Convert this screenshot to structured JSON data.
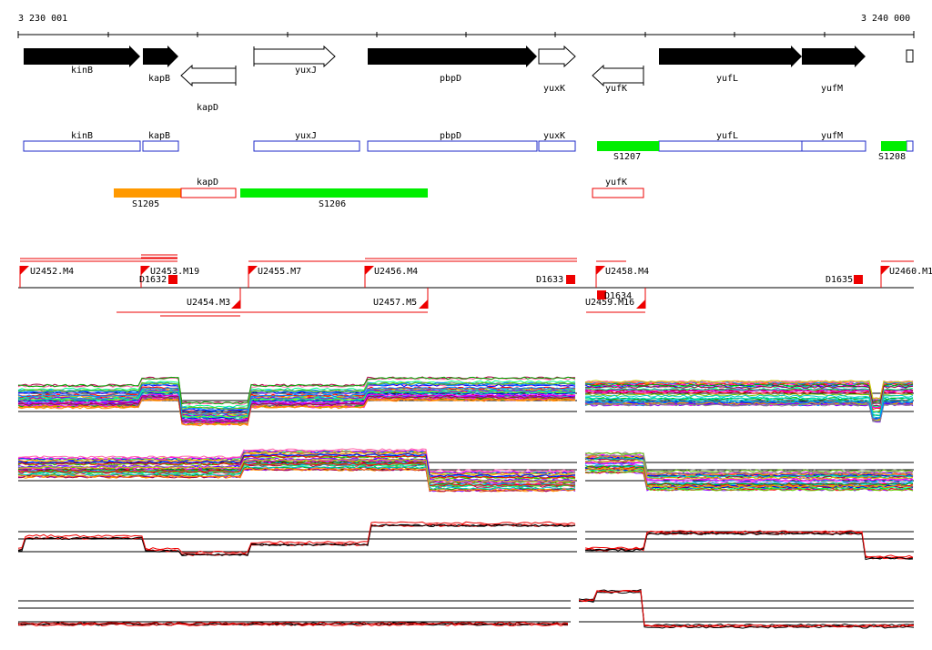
{
  "ruler": {
    "start_label": "3 230 001",
    "end_label": "3 240 000"
  },
  "colors": {
    "gene_fill": "#000000",
    "box_outline": "#1c28c8",
    "orange": "#ff9900",
    "green": "#00ee00",
    "red": "#ee0000",
    "track_black": "#000000"
  },
  "genes_top": [
    "kinB",
    "kapB",
    "kapD",
    "yuxJ",
    "pbpD",
    "yuxK",
    "yufK",
    "yufL",
    "yufM"
  ],
  "gene_boxes": [
    "kinB",
    "kapB",
    "yuxJ",
    "pbpD",
    "yuxK",
    "yufL",
    "yufM"
  ],
  "gene_boxes_reverse": [
    "kapD",
    "yufK"
  ],
  "segments": [
    "S1205",
    "S1206",
    "S1207",
    "S1208"
  ],
  "transcripts_up": [
    "U2452.M4",
    "U2453.M19",
    "U2455.M7",
    "U2456.M4",
    "U2458.M4",
    "U2460.M1"
  ],
  "transcripts_down": [
    "U2454.M3",
    "U2457.M5",
    "U2459.M16"
  ],
  "downshifts": [
    "D1632",
    "D1633",
    "D1634",
    "D1635"
  ],
  "expression_tracks": [
    {
      "name": "track-1",
      "style": "multicolor-dense"
    },
    {
      "name": "track-2",
      "style": "multicolor-sparse"
    },
    {
      "name": "track-3",
      "style": "black-red"
    },
    {
      "name": "track-4",
      "style": "black-red"
    }
  ]
}
